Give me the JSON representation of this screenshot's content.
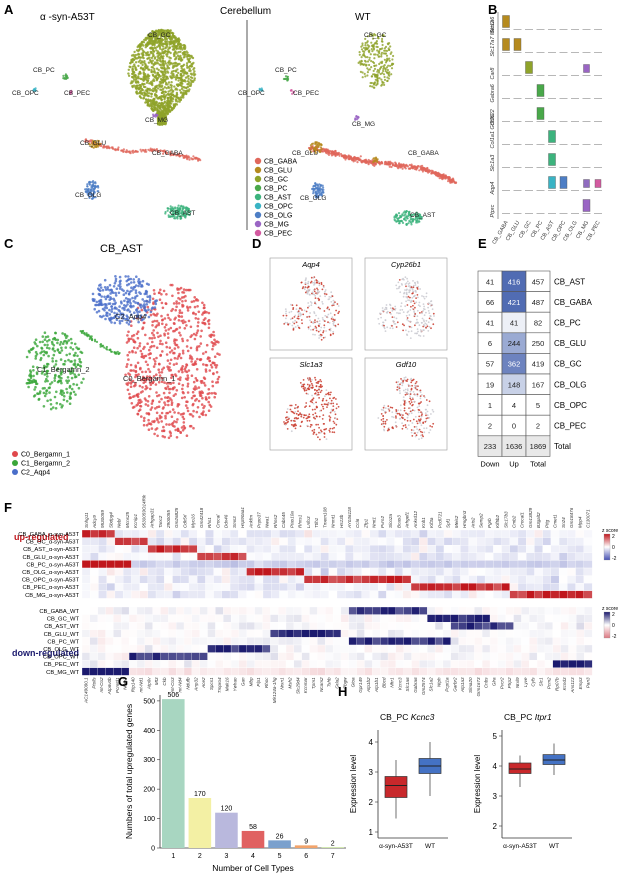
{
  "colors": {
    "CB_GABA": "#e0675b",
    "CB_GLU": "#b58a1e",
    "CB_GC": "#8fa32a",
    "CB_PC": "#49a84a",
    "CB_AST": "#3cb37d",
    "CB_OPC": "#39b3c4",
    "CB_OLG": "#4d7ec5",
    "CB_MG": "#9a65c4",
    "CB_PEC": "#d35aa0",
    "up_red": "#c0161c",
    "down_blue": "#1b1a6e",
    "bar_box_red": "#c8282b",
    "bar_box_blue": "#4472c4"
  },
  "panels": {
    "A": {
      "letter": "A",
      "title": "Cerebellum",
      "left_label": "α -syn-A53T",
      "right_label": "WT",
      "cluster_labels": [
        "CB_PC",
        "CB_OPC",
        "CB_PEC",
        "CB_GC",
        "CB_MG",
        "CB_GLU",
        "CB_GABA",
        "CB_OLG",
        "CB_AST"
      ],
      "legend": [
        "CB_GABA",
        "CB_GLU",
        "CB_GC",
        "CB_PC",
        "CB_AST",
        "CB_OPC",
        "CB_OLG",
        "CB_MG",
        "CB_PEC"
      ]
    },
    "B": {
      "letter": "B",
      "genes": [
        "Slc1a6",
        "Slc17a7 Meis2",
        "Car8",
        "Gabra6",
        "Cdh22",
        "Col1a1 Gdf10",
        "Slc1a3",
        "Aqp4",
        "Ptprc"
      ],
      "x_labels": [
        "CB_GABA",
        "CB_GLU",
        "CB_GC",
        "CB_PC",
        "CB_AST",
        "CB_OPC",
        "CB_OLG",
        "CB_MG",
        "CB_PEC"
      ]
    },
    "C": {
      "letter": "C",
      "title": "CB_AST",
      "cluster_labels": [
        "C0_Bergamn_1",
        "C1_Bergamn_2",
        "C2_Aqp4"
      ],
      "legend": [
        "C0_Bergamn_1",
        "C1_Bergamn_2",
        "C2_Aqp4"
      ],
      "colors": [
        "#e0484c",
        "#3aa639",
        "#4a6ec9"
      ]
    },
    "D": {
      "letter": "D",
      "genes": [
        "Aqp4",
        "Cyp26b1",
        "Slc1a3",
        "Gdf10"
      ]
    },
    "E": {
      "letter": "E",
      "rows": [
        {
          "down": "41",
          "up": "416",
          "total": "457",
          "name": "CB_AST",
          "shade": 0.95
        },
        {
          "down": "66",
          "up": "421",
          "total": "487",
          "name": "CB_GABA",
          "shade": 0.95
        },
        {
          "down": "41",
          "up": "41",
          "total": "82",
          "name": "CB_PC",
          "shade": 0.1
        },
        {
          "down": "6",
          "up": "244",
          "total": "250",
          "name": "CB_GLU",
          "shade": 0.55
        },
        {
          "down": "57",
          "up": "362",
          "total": "419",
          "name": "CB_GC",
          "shade": 0.8
        },
        {
          "down": "19",
          "up": "148",
          "total": "167",
          "name": "CB_OLG",
          "shade": 0.3
        },
        {
          "down": "1",
          "up": "4",
          "total": "5",
          "name": "CB_OPC",
          "shade": 0
        },
        {
          "down": "2",
          "up": "0",
          "total": "2",
          "name": "CB_PEC",
          "shade": 0
        },
        {
          "down": "233",
          "up": "1636",
          "total": "1869",
          "name": "Total",
          "shade": -1
        }
      ],
      "col_labels": [
        "Down",
        "Up",
        "Total"
      ]
    },
    "F": {
      "letter": "F",
      "up_label": "up-regulated",
      "down_label": "down-regulated",
      "zscore_label": "z score",
      "scale_up": [
        "2",
        "0",
        "-2"
      ],
      "scale_down": [
        "2",
        "0",
        "-2"
      ],
      "up_rows": [
        "CB_GABA_α-syn-A53T",
        "CB_GC_α-syn-A53T",
        "CB_AST_α-syn-A53T",
        "CB_GLU_α-syn-A53T",
        "CB_PC_α-syn-A53T",
        "CB_OLG_α-syn-A53T",
        "CB_OPC_α-syn-A53T",
        "CB_PEC_α-syn-A53T",
        "CB_MG_α-syn-A53T"
      ],
      "down_rows": [
        "CB_GABA_WT",
        "CB_GC_WT",
        "CB_AST_WT",
        "CB_GLU_WT",
        "CB_PC_WT",
        "CB_OLG_WT",
        "CB_OPC_WT",
        "CB_PEC_WT",
        "CB_MG_WT"
      ],
      "up_genes": [
        "Snhg11",
        "Adcy9",
        "9530059",
        "Sbdpg4",
        "Nebl",
        "Mcns25",
        "Kcnip1",
        "9530059O14Rik",
        "Arhgap31",
        "Tanc2",
        "2900055",
        "Gm26825",
        "Cdk5rl",
        "Myo16",
        "Gm42418",
        "Rhs1",
        "Crocal",
        "Ddx46",
        "Sms3",
        "Hsp90aa1",
        "Ankfm",
        "Pnpo37",
        "Nwa1",
        "Rhns2",
        "Cabs45",
        "Ptas10a",
        "Rhns1",
        "Lnfo3",
        "Ttlh1",
        "Tmem108",
        "Nnmt1",
        "Hs13b",
        "AY036118",
        "Ccl6",
        "Zfp1",
        "Nmt1",
        "Pvrn2",
        "Slco2a",
        "Bcas3",
        "Arhgef1",
        "Ankrd12",
        "Knb1",
        "Kif3a",
        "Pcdl721",
        "Spf1",
        "Meis2",
        "Hmgbn3",
        "Aris2",
        "Semp2",
        "Pgrb",
        "Kif5b2",
        "Slc17b3",
        "Cmb2",
        "Crocal1",
        "Gm13829",
        "B3galt2",
        "Pttg",
        "Cmet1",
        "Sn24",
        "Gm18476",
        "Mpp4",
        "C130071"
      ],
      "down_genes": [
        "AC149090.1",
        "Ptolls",
        "mt-Co2",
        "Atp6v0b",
        "Pcmtd1",
        "Ndrn3",
        "Rtp140",
        "mt-Nd1",
        "Atp6v",
        "Mt3",
        "Ckb",
        "mt-Co3",
        "mt-Nd4",
        "Ndufb",
        "Anp32",
        "Ace2",
        "Spcs1",
        "Tmpro4",
        "Mak16",
        "Ywhao",
        "Gan",
        "Mbp",
        "Plp1",
        "Rhoc",
        "Mir124a-1hg",
        "Nrxn1",
        "Msh2",
        "Slc29d4",
        "Kcnmar",
        "Tpm1",
        "Ncam2",
        "Tshb",
        "Grla2",
        "Pbgw",
        "Gtoa",
        "Gpr149",
        "Atp1b2",
        "Atp1b1",
        "Bbcd",
        "Nfrr1",
        "Kcnc3",
        "Slc1a6",
        "Gabra6",
        "Gm2574",
        "Slc1a2",
        "Ntph",
        "Pcpt1a",
        "Garbr2",
        "Atp1a3",
        "Slma20",
        "Grm1673",
        "Cnbs",
        "Glra",
        "Pvcr2",
        "Ptrp2",
        "Nrxl9",
        "Lyve",
        "Cyfs",
        "Slc1",
        "Pcm2",
        "Rp07b",
        "Kcnd3",
        "Ans113",
        "Emp3",
        "Pan3"
      ]
    },
    "G": {
      "letter": "G",
      "ylabel": "Numbers of total upregulated genes",
      "xlabel": "Number of Cell Types"
    },
    "H": {
      "letter": "H",
      "plots": [
        {
          "title": "CB_PC Kcnc3",
          "ylabel": "Expression level",
          "groups": [
            "α-syn-A53T",
            "WT"
          ],
          "yticks": [
            "1",
            "2",
            "3",
            "4"
          ]
        },
        {
          "title": "CB_PC Itpr1",
          "ylabel": "Expression level",
          "groups": [
            "α-syn-A53T",
            "WT"
          ],
          "yticks": [
            "2",
            "3",
            "4",
            "5"
          ]
        }
      ]
    }
  },
  "chart_data": {
    "type": "bar",
    "title": "",
    "categories": [
      "1",
      "2",
      "3",
      "4",
      "5",
      "6",
      "7"
    ],
    "values": [
      506,
      170,
      120,
      58,
      26,
      9,
      2
    ],
    "data_labels": [
      "506",
      "170",
      "120",
      "58",
      "26",
      "9",
      "2"
    ],
    "xlabel": "Number of Cell Types",
    "ylabel": "Numbers of total upregulated genes",
    "ylim": [
      0,
      500
    ],
    "yticks": [
      "0",
      "100",
      "200",
      "300",
      "400",
      "500"
    ],
    "bar_colors": [
      "#a8d6c1",
      "#f3f0a4",
      "#b9b8dd",
      "#e06161",
      "#7aa0cd",
      "#f2a36b",
      "#b2d97a"
    ]
  }
}
